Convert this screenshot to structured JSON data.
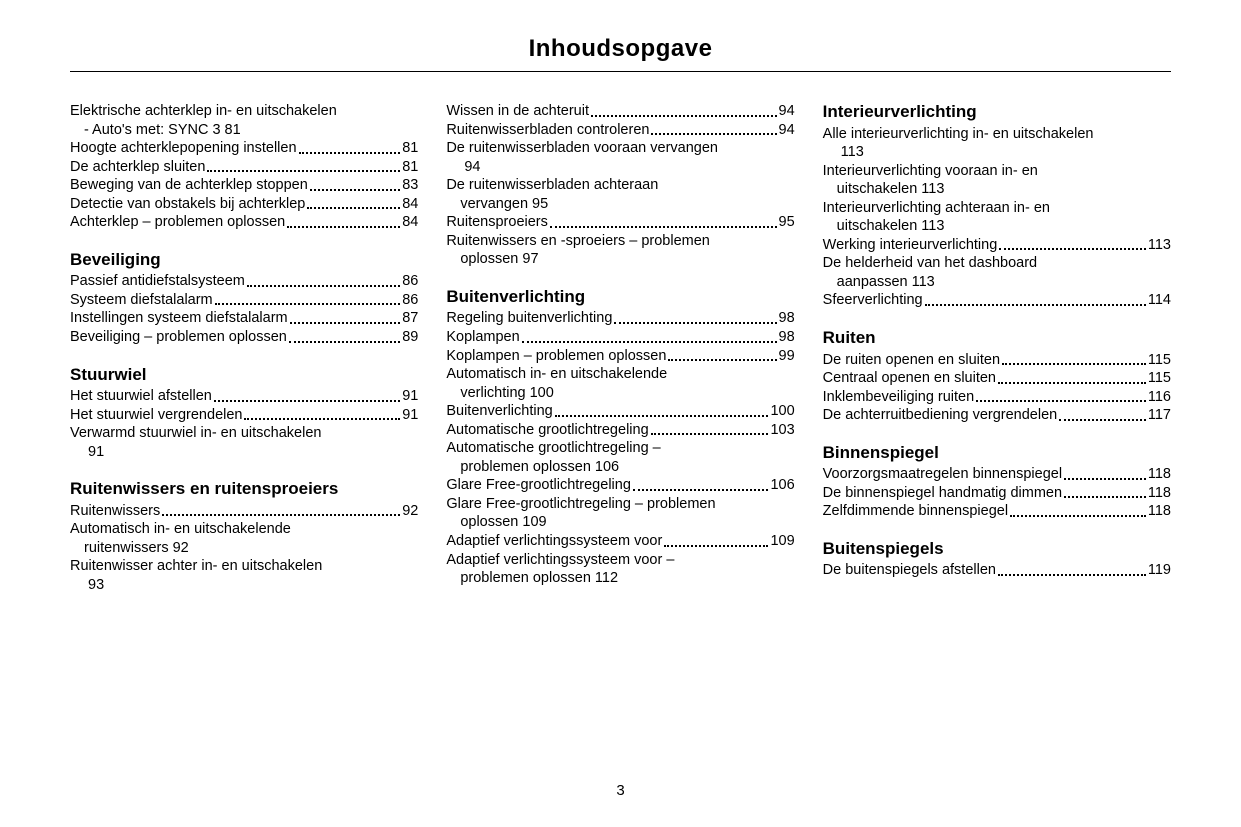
{
  "title": "Inhoudsopgave",
  "page_number": "3",
  "columns": [
    {
      "blocks": [
        {
          "type": "entries",
          "entries": [
            {
              "text": "Elektrische achterklep in- en uitschakelen",
              "sub": "- Auto's met: SYNC 3",
              "page": "81"
            },
            {
              "text": "Hoogte achterklepopening instellen",
              "page": "81"
            },
            {
              "text": "De achterklep sluiten",
              "page": "81"
            },
            {
              "text": "Beweging van de achterklep stoppen",
              "page": "83"
            },
            {
              "text": "Detectie van obstakels bij achterklep",
              "page": "84"
            },
            {
              "text": "Achterklep – problemen oplossen",
              "page": "84"
            }
          ]
        },
        {
          "type": "heading",
          "text": "Beveiliging"
        },
        {
          "type": "entries",
          "entries": [
            {
              "text": "Passief antidiefstalsysteem",
              "page": "86"
            },
            {
              "text": "Systeem diefstalalarm",
              "page": "86"
            },
            {
              "text": "Instellingen systeem diefstalalarm",
              "page": "87"
            },
            {
              "text": "Beveiliging – problemen oplossen",
              "page": "89"
            }
          ]
        },
        {
          "type": "heading",
          "text": "Stuurwiel"
        },
        {
          "type": "entries",
          "entries": [
            {
              "text": "Het stuurwiel afstellen",
              "page": "91"
            },
            {
              "text": "Het stuurwiel vergrendelen",
              "page": "91"
            },
            {
              "text": "Verwarmd stuurwiel in- en uitschakelen",
              "sub": "",
              "page": "91"
            }
          ]
        },
        {
          "type": "heading",
          "text": "Ruitenwissers en ruiten­sproeiers"
        },
        {
          "type": "entries",
          "entries": [
            {
              "text": "Ruitenwissers",
              "page": "92"
            },
            {
              "text": "Automatisch in- en uitschakelende",
              "sub": "ruitenwissers",
              "page": "92"
            },
            {
              "text": "Ruitenwisser achter in- en uitschakelen",
              "sub": "",
              "page": "93"
            }
          ]
        }
      ]
    },
    {
      "blocks": [
        {
          "type": "entries",
          "entries": [
            {
              "text": "Wissen in de achteruit",
              "page": "94"
            },
            {
              "text": "Ruitenwisserbladen controleren",
              "page": "94"
            },
            {
              "text": "De ruitenwisserbladen vooraan vervangen",
              "sub": "",
              "page": "94"
            },
            {
              "text": "De ruitenwisserbladen achteraan",
              "sub": "vervangen",
              "page": "95"
            },
            {
              "text": "Ruitensproeiers",
              "page": "95"
            },
            {
              "text": "Ruitenwissers en -sproeiers – problemen",
              "sub": "oplossen",
              "page": "97"
            }
          ]
        },
        {
          "type": "heading",
          "text": "Buitenverlichting"
        },
        {
          "type": "entries",
          "entries": [
            {
              "text": "Regeling buitenverlichting",
              "page": "98"
            },
            {
              "text": "Koplampen",
              "page": "98"
            },
            {
              "text": "Koplampen – problemen oplossen",
              "page": "99"
            },
            {
              "text": "Automatisch in- en uitschakelende",
              "sub": "verlichting",
              "page": "100"
            },
            {
              "text": "Buitenverlichting",
              "page": "100"
            },
            {
              "text": "Automatische grootlichtregeling",
              "page": "103"
            },
            {
              "text": "Automatische grootlichtregeling –",
              "sub": "problemen oplossen",
              "page": "106"
            },
            {
              "text": "Glare Free-grootlichtregeling",
              "page": "106"
            },
            {
              "text": "Glare Free-grootlichtregeling – problemen",
              "sub": "oplossen",
              "page": "109"
            },
            {
              "text": "Adaptief verlichtingssysteem voor",
              "page": "109"
            },
            {
              "text": "Adaptief verlichtingssysteem voor –",
              "sub": "problemen oplossen",
              "page": "112"
            }
          ]
        }
      ]
    },
    {
      "blocks": [
        {
          "type": "heading",
          "text": "Interieurverlichting"
        },
        {
          "type": "entries",
          "entries": [
            {
              "text": "Alle interieurverlichting in- en uitschakelen",
              "sub": "",
              "page": "113"
            },
            {
              "text": "Interieurverlichting vooraan in- en",
              "sub": "uitschakelen",
              "page": "113"
            },
            {
              "text": "Interieurverlichting achteraan in- en",
              "sub": "uitschakelen",
              "page": "113"
            },
            {
              "text": "Werking interieurverlichting",
              "page": "113"
            },
            {
              "text": "De helderheid van het dashboard",
              "sub": "aanpassen",
              "page": "113"
            },
            {
              "text": "Sfeerverlichting",
              "page": "114"
            }
          ]
        },
        {
          "type": "heading",
          "text": "Ruiten"
        },
        {
          "type": "entries",
          "entries": [
            {
              "text": "De ruiten openen en sluiten",
              "page": "115"
            },
            {
              "text": "Centraal openen en sluiten",
              "page": "115"
            },
            {
              "text": "Inklembeveiliging ruiten",
              "page": "116"
            },
            {
              "text": "De achterruitbediening vergrendelen",
              "page": "117"
            }
          ]
        },
        {
          "type": "heading",
          "text": "Binnenspiegel"
        },
        {
          "type": "entries",
          "entries": [
            {
              "text": "Voorzorgsmaatregelen binnenspiegel",
              "page": "118"
            },
            {
              "text": "De binnenspiegel handmatig dimmen",
              "page": "118"
            },
            {
              "text": "Zelfdimmende binnenspiegel",
              "page": "118"
            }
          ]
        },
        {
          "type": "heading",
          "text": "Buitenspiegels"
        },
        {
          "type": "entries",
          "entries": [
            {
              "text": "De buitenspiegels afstellen",
              "page": "119"
            }
          ]
        }
      ]
    }
  ]
}
